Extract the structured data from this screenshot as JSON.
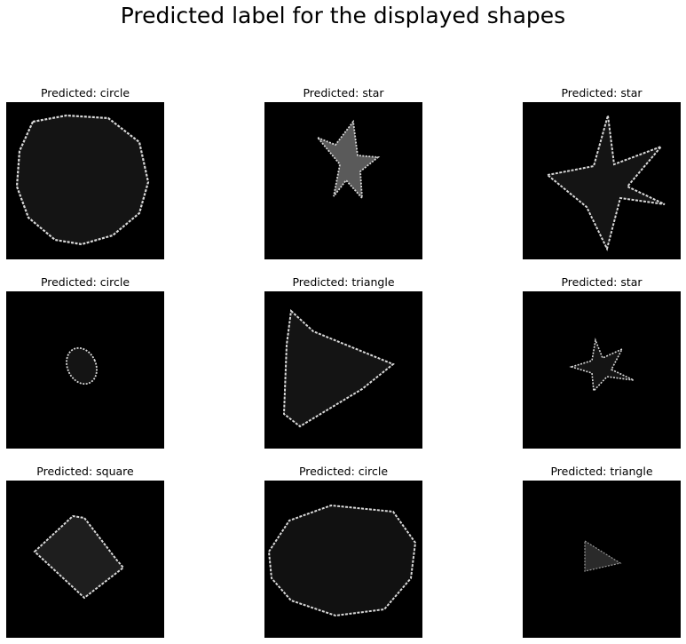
{
  "figure": {
    "title": "Predicted label for the displayed shapes"
  },
  "panels": [
    {
      "title": "Predicted: circle",
      "shape": "circle"
    },
    {
      "title": "Predicted: star",
      "shape": "star"
    },
    {
      "title": "Predicted: star",
      "shape": "star"
    },
    {
      "title": "Predicted: circle",
      "shape": "circle"
    },
    {
      "title": "Predicted: triangle",
      "shape": "triangle"
    },
    {
      "title": "Predicted: star",
      "shape": "star"
    },
    {
      "title": "Predicted: square",
      "shape": "square"
    },
    {
      "title": "Predicted: circle",
      "shape": "circle"
    },
    {
      "title": "Predicted: triangle",
      "shape": "triangle"
    }
  ],
  "colors": {
    "background": "#000000",
    "shape_fill": "#141414",
    "shape_fill_light": "#5a5a5a",
    "outline": "#d8d8d8"
  }
}
